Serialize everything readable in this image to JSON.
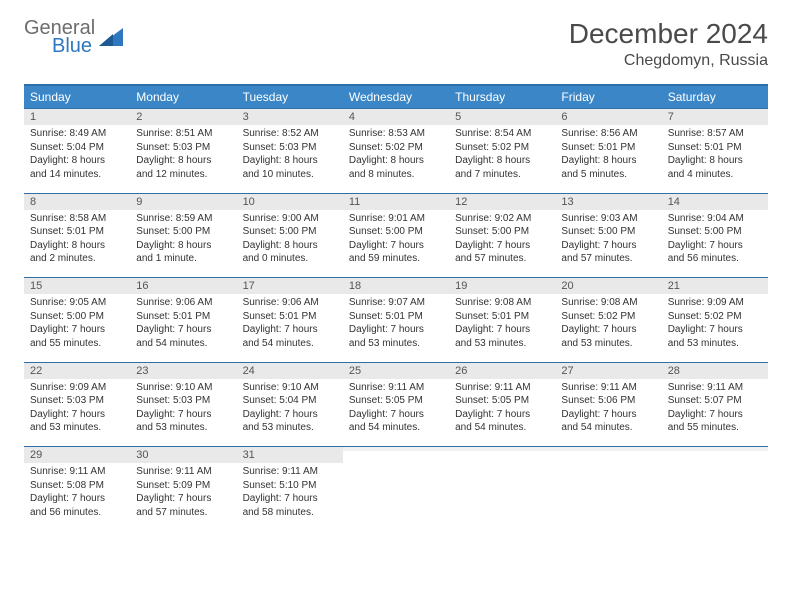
{
  "logo": {
    "general": "General",
    "blue": "Blue"
  },
  "title": "December 2024",
  "location": "Chegdomyn, Russia",
  "colors": {
    "header_bg": "#3b86c7",
    "header_border": "#2f6fa9",
    "daynum_bg": "#e9e9e9",
    "text": "#333333",
    "logo_gray": "#6d6d6d",
    "logo_blue": "#2f78bf"
  },
  "weekdays": [
    "Sunday",
    "Monday",
    "Tuesday",
    "Wednesday",
    "Thursday",
    "Friday",
    "Saturday"
  ],
  "weeks": [
    [
      {
        "n": "1",
        "sr": "Sunrise: 8:49 AM",
        "ss": "Sunset: 5:04 PM",
        "d1": "Daylight: 8 hours",
        "d2": "and 14 minutes."
      },
      {
        "n": "2",
        "sr": "Sunrise: 8:51 AM",
        "ss": "Sunset: 5:03 PM",
        "d1": "Daylight: 8 hours",
        "d2": "and 12 minutes."
      },
      {
        "n": "3",
        "sr": "Sunrise: 8:52 AM",
        "ss": "Sunset: 5:03 PM",
        "d1": "Daylight: 8 hours",
        "d2": "and 10 minutes."
      },
      {
        "n": "4",
        "sr": "Sunrise: 8:53 AM",
        "ss": "Sunset: 5:02 PM",
        "d1": "Daylight: 8 hours",
        "d2": "and 8 minutes."
      },
      {
        "n": "5",
        "sr": "Sunrise: 8:54 AM",
        "ss": "Sunset: 5:02 PM",
        "d1": "Daylight: 8 hours",
        "d2": "and 7 minutes."
      },
      {
        "n": "6",
        "sr": "Sunrise: 8:56 AM",
        "ss": "Sunset: 5:01 PM",
        "d1": "Daylight: 8 hours",
        "d2": "and 5 minutes."
      },
      {
        "n": "7",
        "sr": "Sunrise: 8:57 AM",
        "ss": "Sunset: 5:01 PM",
        "d1": "Daylight: 8 hours",
        "d2": "and 4 minutes."
      }
    ],
    [
      {
        "n": "8",
        "sr": "Sunrise: 8:58 AM",
        "ss": "Sunset: 5:01 PM",
        "d1": "Daylight: 8 hours",
        "d2": "and 2 minutes."
      },
      {
        "n": "9",
        "sr": "Sunrise: 8:59 AM",
        "ss": "Sunset: 5:00 PM",
        "d1": "Daylight: 8 hours",
        "d2": "and 1 minute."
      },
      {
        "n": "10",
        "sr": "Sunrise: 9:00 AM",
        "ss": "Sunset: 5:00 PM",
        "d1": "Daylight: 8 hours",
        "d2": "and 0 minutes."
      },
      {
        "n": "11",
        "sr": "Sunrise: 9:01 AM",
        "ss": "Sunset: 5:00 PM",
        "d1": "Daylight: 7 hours",
        "d2": "and 59 minutes."
      },
      {
        "n": "12",
        "sr": "Sunrise: 9:02 AM",
        "ss": "Sunset: 5:00 PM",
        "d1": "Daylight: 7 hours",
        "d2": "and 57 minutes."
      },
      {
        "n": "13",
        "sr": "Sunrise: 9:03 AM",
        "ss": "Sunset: 5:00 PM",
        "d1": "Daylight: 7 hours",
        "d2": "and 57 minutes."
      },
      {
        "n": "14",
        "sr": "Sunrise: 9:04 AM",
        "ss": "Sunset: 5:00 PM",
        "d1": "Daylight: 7 hours",
        "d2": "and 56 minutes."
      }
    ],
    [
      {
        "n": "15",
        "sr": "Sunrise: 9:05 AM",
        "ss": "Sunset: 5:00 PM",
        "d1": "Daylight: 7 hours",
        "d2": "and 55 minutes."
      },
      {
        "n": "16",
        "sr": "Sunrise: 9:06 AM",
        "ss": "Sunset: 5:01 PM",
        "d1": "Daylight: 7 hours",
        "d2": "and 54 minutes."
      },
      {
        "n": "17",
        "sr": "Sunrise: 9:06 AM",
        "ss": "Sunset: 5:01 PM",
        "d1": "Daylight: 7 hours",
        "d2": "and 54 minutes."
      },
      {
        "n": "18",
        "sr": "Sunrise: 9:07 AM",
        "ss": "Sunset: 5:01 PM",
        "d1": "Daylight: 7 hours",
        "d2": "and 53 minutes."
      },
      {
        "n": "19",
        "sr": "Sunrise: 9:08 AM",
        "ss": "Sunset: 5:01 PM",
        "d1": "Daylight: 7 hours",
        "d2": "and 53 minutes."
      },
      {
        "n": "20",
        "sr": "Sunrise: 9:08 AM",
        "ss": "Sunset: 5:02 PM",
        "d1": "Daylight: 7 hours",
        "d2": "and 53 minutes."
      },
      {
        "n": "21",
        "sr": "Sunrise: 9:09 AM",
        "ss": "Sunset: 5:02 PM",
        "d1": "Daylight: 7 hours",
        "d2": "and 53 minutes."
      }
    ],
    [
      {
        "n": "22",
        "sr": "Sunrise: 9:09 AM",
        "ss": "Sunset: 5:03 PM",
        "d1": "Daylight: 7 hours",
        "d2": "and 53 minutes."
      },
      {
        "n": "23",
        "sr": "Sunrise: 9:10 AM",
        "ss": "Sunset: 5:03 PM",
        "d1": "Daylight: 7 hours",
        "d2": "and 53 minutes."
      },
      {
        "n": "24",
        "sr": "Sunrise: 9:10 AM",
        "ss": "Sunset: 5:04 PM",
        "d1": "Daylight: 7 hours",
        "d2": "and 53 minutes."
      },
      {
        "n": "25",
        "sr": "Sunrise: 9:11 AM",
        "ss": "Sunset: 5:05 PM",
        "d1": "Daylight: 7 hours",
        "d2": "and 54 minutes."
      },
      {
        "n": "26",
        "sr": "Sunrise: 9:11 AM",
        "ss": "Sunset: 5:05 PM",
        "d1": "Daylight: 7 hours",
        "d2": "and 54 minutes."
      },
      {
        "n": "27",
        "sr": "Sunrise: 9:11 AM",
        "ss": "Sunset: 5:06 PM",
        "d1": "Daylight: 7 hours",
        "d2": "and 54 minutes."
      },
      {
        "n": "28",
        "sr": "Sunrise: 9:11 AM",
        "ss": "Sunset: 5:07 PM",
        "d1": "Daylight: 7 hours",
        "d2": "and 55 minutes."
      }
    ],
    [
      {
        "n": "29",
        "sr": "Sunrise: 9:11 AM",
        "ss": "Sunset: 5:08 PM",
        "d1": "Daylight: 7 hours",
        "d2": "and 56 minutes."
      },
      {
        "n": "30",
        "sr": "Sunrise: 9:11 AM",
        "ss": "Sunset: 5:09 PM",
        "d1": "Daylight: 7 hours",
        "d2": "and 57 minutes."
      },
      {
        "n": "31",
        "sr": "Sunrise: 9:11 AM",
        "ss": "Sunset: 5:10 PM",
        "d1": "Daylight: 7 hours",
        "d2": "and 58 minutes."
      },
      {
        "n": "",
        "sr": "",
        "ss": "",
        "d1": "",
        "d2": "",
        "empty": true
      },
      {
        "n": "",
        "sr": "",
        "ss": "",
        "d1": "",
        "d2": "",
        "empty": true
      },
      {
        "n": "",
        "sr": "",
        "ss": "",
        "d1": "",
        "d2": "",
        "empty": true
      },
      {
        "n": "",
        "sr": "",
        "ss": "",
        "d1": "",
        "d2": "",
        "empty": true
      }
    ]
  ]
}
